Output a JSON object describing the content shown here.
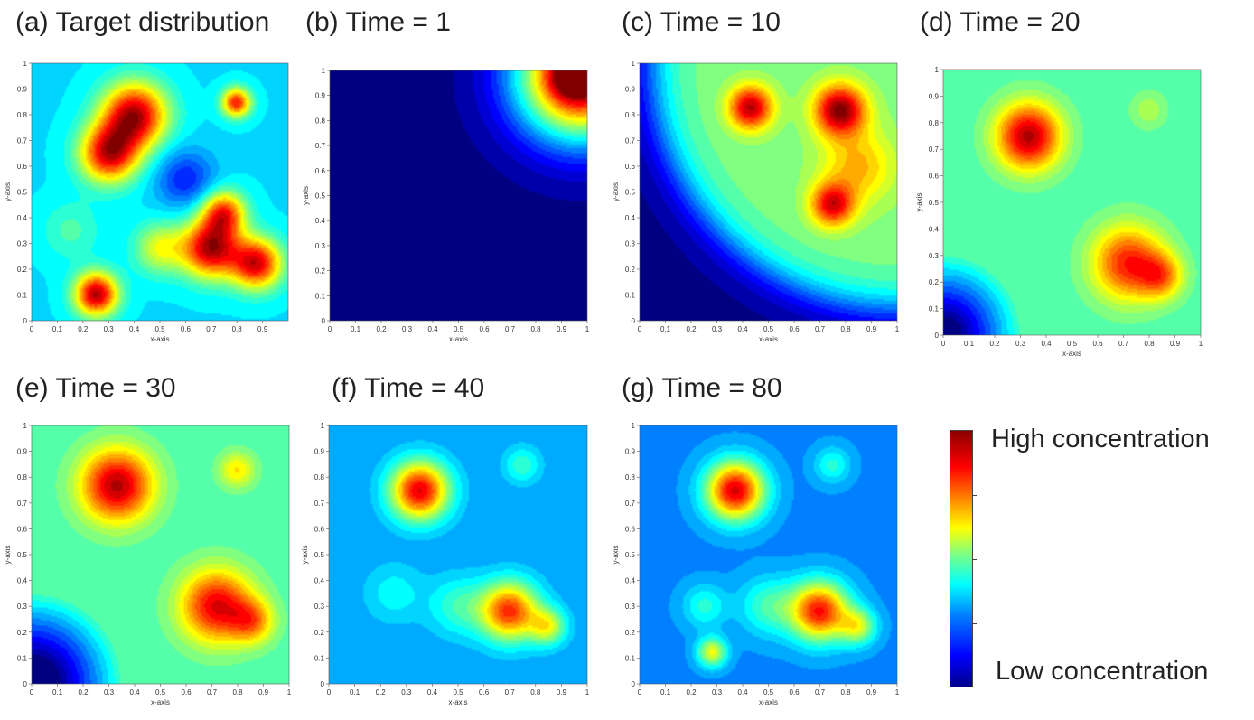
{
  "panels": [
    {
      "title": "(a) Target distribution"
    },
    {
      "title": "(b) Time = 1"
    },
    {
      "title": "(c) Time = 10"
    },
    {
      "title": "(d) Time = 20"
    },
    {
      "title": "(e) Time = 30"
    },
    {
      "title": "(f) Time = 40"
    },
    {
      "title": "(g) Time = 80"
    }
  ],
  "colorbar": {
    "high_label": "High concentration",
    "low_label": "Low concentration",
    "colors": [
      "#00008b",
      "#0000ff",
      "#0080ff",
      "#00ffff",
      "#80ff80",
      "#ffff00",
      "#ff8000",
      "#ff0000",
      "#8b0000"
    ]
  },
  "chart_data": [
    {
      "type": "heatmap",
      "title": "(a) Target distribution",
      "xlabel": "x-axis",
      "ylabel": "y-axis",
      "xlim": [
        0,
        1
      ],
      "ylim": [
        0,
        1
      ],
      "x_ticks": [
        "0",
        "0.1",
        "0.2",
        "0.3",
        "0.4",
        "0.5",
        "0.6",
        "0.7",
        "0.8",
        "0.9"
      ],
      "y_ticks": [
        "0",
        "0.1",
        "0.2",
        "0.3",
        "0.4",
        "0.5",
        "0.6",
        "0.7",
        "0.8",
        "0.9",
        "1"
      ],
      "base": 0.35,
      "peaks": [
        [
          0.3,
          0.65,
          0.55,
          0.08
        ],
        [
          0.4,
          0.8,
          0.6,
          0.09
        ],
        [
          0.25,
          0.1,
          0.6,
          0.06
        ],
        [
          0.7,
          0.28,
          0.6,
          0.08
        ],
        [
          0.88,
          0.22,
          0.55,
          0.07
        ],
        [
          0.75,
          0.42,
          0.45,
          0.06
        ],
        [
          0.8,
          0.85,
          0.5,
          0.04
        ],
        [
          0.5,
          0.28,
          0.25,
          0.07
        ],
        [
          0.6,
          0.55,
          -0.2,
          0.08
        ],
        [
          0.15,
          0.35,
          0.1,
          0.08
        ]
      ]
    },
    {
      "type": "heatmap",
      "title": "(b) Time = 1",
      "xlabel": "x-axis",
      "ylabel": "y-axis",
      "xlim": [
        0,
        1
      ],
      "ylim": [
        0,
        1
      ],
      "x_ticks": [
        "0",
        "0.1",
        "0.2",
        "0.3",
        "0.4",
        "0.5",
        "0.6",
        "0.7",
        "0.8",
        "0.9",
        "1"
      ],
      "y_ticks": [
        "0",
        "0.1",
        "0.2",
        "0.3",
        "0.4",
        "0.5",
        "0.6",
        "0.7",
        "0.8",
        "0.9",
        "1"
      ],
      "base": 0.0,
      "peaks": [
        [
          0.98,
          0.98,
          1.0,
          0.18
        ],
        [
          0.95,
          0.98,
          0.3,
          0.06
        ]
      ]
    },
    {
      "type": "heatmap",
      "title": "(c) Time = 10",
      "xlabel": "x-axis",
      "ylabel": "y-axis",
      "xlim": [
        0,
        1
      ],
      "ylim": [
        0,
        1
      ],
      "x_ticks": [
        "0",
        "0.1",
        "0.2",
        "0.3",
        "0.4",
        "0.5",
        "0.6",
        "0.7",
        "0.8",
        "0.9",
        "1"
      ],
      "y_ticks": [
        "0",
        "0.1",
        "0.2",
        "0.3",
        "0.4",
        "0.5",
        "0.6",
        "0.7",
        "0.8",
        "0.9",
        "1"
      ],
      "base": 0.0,
      "front": {
        "cx": 1.0,
        "cy": 1.0,
        "r": 0.95,
        "width": 0.15,
        "level": 0.5
      },
      "peaks": [
        [
          0.43,
          0.83,
          0.45,
          0.06
        ],
        [
          0.78,
          0.82,
          0.5,
          0.07
        ],
        [
          0.75,
          0.45,
          0.4,
          0.06
        ],
        [
          0.85,
          0.6,
          0.2,
          0.1
        ]
      ]
    },
    {
      "type": "heatmap",
      "title": "(d) Time = 20",
      "xlabel": "x-axis",
      "ylabel": "y-axis",
      "xlim": [
        0,
        1
      ],
      "ylim": [
        0,
        1
      ],
      "x_ticks": [
        "0",
        "0.1",
        "0.2",
        "0.3",
        "0.4",
        "0.5",
        "0.6",
        "0.7",
        "0.8",
        "0.9",
        "1"
      ],
      "y_ticks": [
        "0",
        "0.1",
        "0.2",
        "0.3",
        "0.4",
        "0.5",
        "0.6",
        "0.7",
        "0.8",
        "0.9",
        "1"
      ],
      "base": 0.45,
      "corner": {
        "cx": 0.0,
        "cy": 0.0,
        "r": 0.3,
        "depth": 0.4
      },
      "peaks": [
        [
          0.33,
          0.75,
          0.5,
          0.09
        ],
        [
          0.72,
          0.27,
          0.4,
          0.1
        ],
        [
          0.85,
          0.22,
          0.25,
          0.06
        ],
        [
          0.8,
          0.85,
          0.1,
          0.05
        ]
      ]
    },
    {
      "type": "heatmap",
      "title": "(e) Time = 30",
      "xlabel": "x-axis",
      "ylabel": "y-axis",
      "xlim": [
        0,
        1
      ],
      "ylim": [
        0,
        1
      ],
      "x_ticks": [
        "0",
        "0.1",
        "0.2",
        "0.3",
        "0.4",
        "0.5",
        "0.6",
        "0.7",
        "0.8",
        "0.9",
        "1"
      ],
      "y_ticks": [
        "0",
        "0.1",
        "0.2",
        "0.3",
        "0.4",
        "0.5",
        "0.6",
        "0.7",
        "0.8",
        "0.9",
        "1"
      ],
      "base": 0.45,
      "corner": {
        "cx": 0.0,
        "cy": 0.0,
        "r": 0.35,
        "depth": 0.45
      },
      "peaks": [
        [
          0.33,
          0.77,
          0.5,
          0.1
        ],
        [
          0.72,
          0.3,
          0.45,
          0.1
        ],
        [
          0.86,
          0.24,
          0.25,
          0.06
        ],
        [
          0.8,
          0.83,
          0.2,
          0.05
        ]
      ]
    },
    {
      "type": "heatmap",
      "title": "(f) Time = 40",
      "xlabel": "x-axis",
      "ylabel": "y-axis",
      "xlim": [
        0,
        1
      ],
      "ylim": [
        0,
        1
      ],
      "x_ticks": [
        "0",
        "0.1",
        "0.2",
        "0.3",
        "0.4",
        "0.5",
        "0.6",
        "0.7",
        "0.8",
        "0.9",
        "1"
      ],
      "y_ticks": [
        "0",
        "0.1",
        "0.2",
        "0.3",
        "0.4",
        "0.5",
        "0.6",
        "0.7",
        "0.8",
        "0.9",
        "1"
      ],
      "base": 0.28,
      "peaks": [
        [
          0.35,
          0.75,
          0.62,
          0.08
        ],
        [
          0.7,
          0.28,
          0.55,
          0.08
        ],
        [
          0.85,
          0.22,
          0.3,
          0.05
        ],
        [
          0.75,
          0.85,
          0.15,
          0.05
        ],
        [
          0.5,
          0.3,
          0.15,
          0.08
        ],
        [
          0.25,
          0.35,
          0.1,
          0.08
        ]
      ]
    },
    {
      "type": "heatmap",
      "title": "(g) Time = 80",
      "xlabel": "x-axis",
      "ylabel": "y-axis",
      "xlim": [
        0,
        1
      ],
      "ylim": [
        0,
        1
      ],
      "x_ticks": [
        "0",
        "0.1",
        "0.2",
        "0.3",
        "0.4",
        "0.5",
        "0.6",
        "0.7",
        "0.8",
        "0.9",
        "1"
      ],
      "y_ticks": [
        "0",
        "0.1",
        "0.2",
        "0.3",
        "0.4",
        "0.5",
        "0.6",
        "0.7",
        "0.8",
        "0.9",
        "1"
      ],
      "base": 0.26,
      "peaks": [
        [
          0.37,
          0.75,
          0.65,
          0.08
        ],
        [
          0.7,
          0.28,
          0.6,
          0.08
        ],
        [
          0.85,
          0.22,
          0.3,
          0.05
        ],
        [
          0.28,
          0.12,
          0.35,
          0.04
        ],
        [
          0.75,
          0.85,
          0.15,
          0.05
        ],
        [
          0.5,
          0.3,
          0.18,
          0.08
        ],
        [
          0.25,
          0.3,
          0.15,
          0.06
        ]
      ]
    }
  ]
}
